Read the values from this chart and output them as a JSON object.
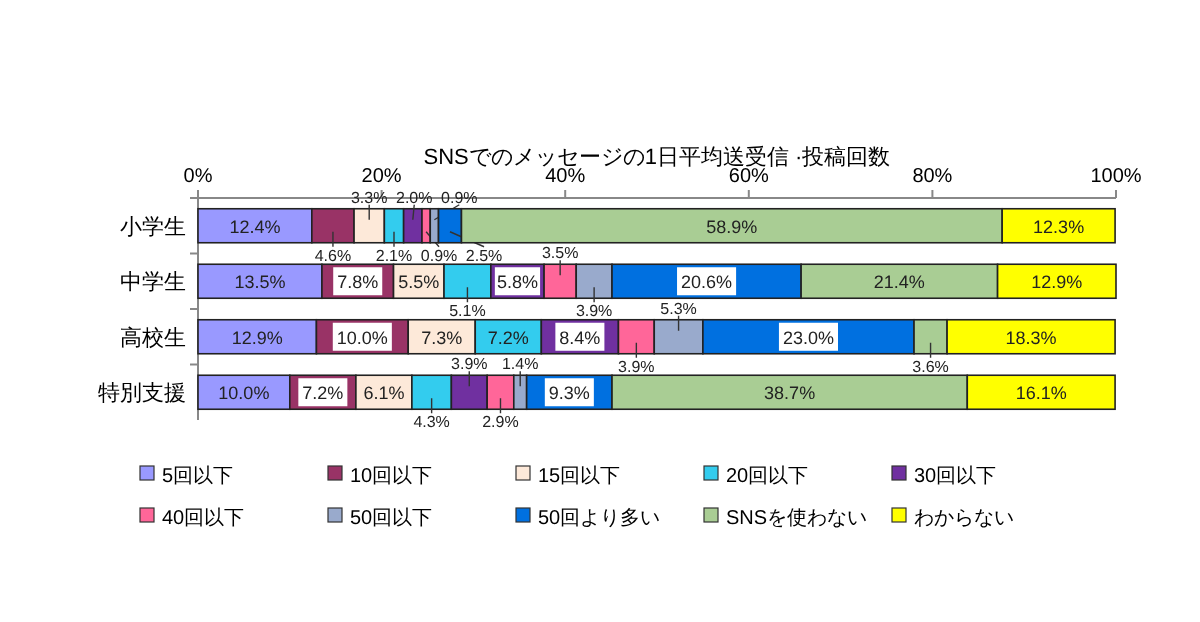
{
  "chart_data": {
    "type": "bar",
    "orientation": "horizontal",
    "stacked": true,
    "title": "SNSでのメッセージの1日平均送受信 ·投稿回数",
    "categories": [
      "小学生",
      "中学生",
      "高校生",
      "特別支援"
    ],
    "series": [
      {
        "name": "5回以下",
        "color": "#9999ff",
        "values": [
          12.4,
          13.5,
          12.9,
          10.0
        ],
        "value_labels": [
          "12.4%",
          "13.5%",
          "12.9%",
          "10.0%"
        ]
      },
      {
        "name": "10回以下",
        "color": "#993366",
        "values": [
          4.6,
          7.8,
          10.0,
          7.2
        ],
        "value_labels": [
          "4.6%",
          "7.8%",
          "10.0%",
          "7.2%"
        ]
      },
      {
        "name": "15回以下",
        "color": "#fde9d9",
        "values": [
          3.3,
          5.5,
          7.3,
          6.1
        ],
        "value_labels": [
          "3.3%",
          "5.5%",
          "7.3%",
          "6.1%"
        ]
      },
      {
        "name": "20回以下",
        "color": "#33ccee",
        "values": [
          2.1,
          5.1,
          7.2,
          4.3
        ],
        "value_labels": [
          "2.1%",
          "5.1%",
          "7.2%",
          "4.3%"
        ]
      },
      {
        "name": "30回以下",
        "color": "#7030a0",
        "values": [
          2.0,
          5.8,
          8.4,
          3.9
        ],
        "value_labels": [
          "2.0%",
          "5.8%",
          "8.4%",
          "3.9%"
        ]
      },
      {
        "name": "40回以下",
        "color": "#ff6699",
        "values": [
          0.9,
          3.5,
          3.9,
          2.9
        ],
        "value_labels": [
          "0.9%",
          "3.5%",
          "3.9%",
          "2.9%"
        ]
      },
      {
        "name": "50回以下",
        "color": "#99aacc",
        "values": [
          0.9,
          3.9,
          5.3,
          1.4
        ],
        "value_labels": [
          "0.9%",
          "3.9%",
          "5.3%",
          "1.4%"
        ]
      },
      {
        "name": "50回より多い",
        "color": "#0070e0",
        "values": [
          2.5,
          20.6,
          23.0,
          9.3
        ],
        "value_labels": [
          "2.5%",
          "20.6%",
          "23.0%",
          "9.3%"
        ]
      },
      {
        "name": "SNSを使わない",
        "color": "#a9cd94",
        "values": [
          58.9,
          21.4,
          3.6,
          38.7
        ],
        "value_labels": [
          "58.9%",
          "21.4%",
          "3.6%",
          "38.7%"
        ]
      },
      {
        "name": "わからない",
        "color": "#ffff00",
        "values": [
          12.3,
          12.9,
          18.3,
          16.1
        ],
        "value_labels": [
          "12.3%",
          "12.9%",
          "18.3%",
          "16.1%"
        ]
      }
    ],
    "xlim": [
      0,
      100
    ],
    "xticks": [
      {
        "value": 0,
        "label": "0%"
      },
      {
        "value": 20,
        "label": "20%"
      },
      {
        "value": 40,
        "label": "40%"
      },
      {
        "value": 60,
        "label": "60%"
      },
      {
        "value": 80,
        "label": "80%"
      },
      {
        "value": 100,
        "label": "100%"
      }
    ],
    "grid": false,
    "legend": "bottom"
  }
}
